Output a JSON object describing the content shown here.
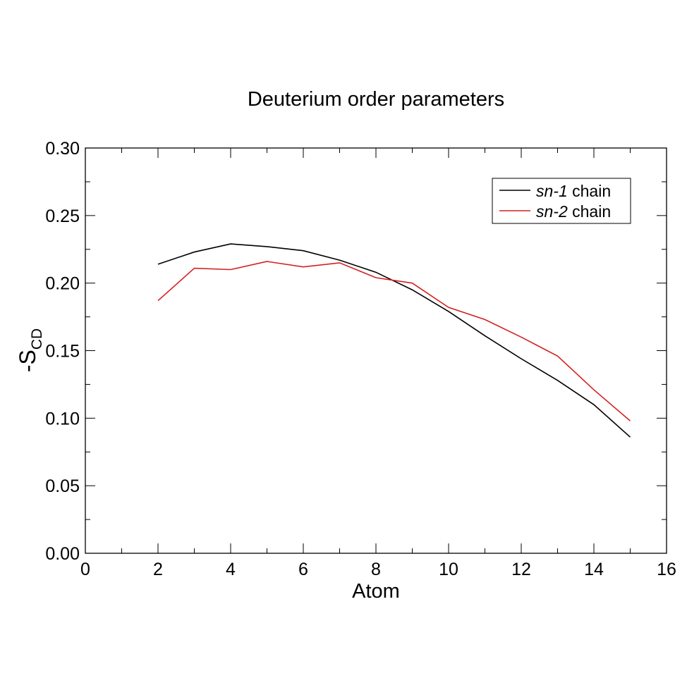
{
  "chart_data": {
    "type": "line",
    "title": "Deuterium order parameters",
    "xlabel": "Atom",
    "ylabel_main": "-S",
    "ylabel_sub": "CD",
    "xlim": [
      0,
      16
    ],
    "ylim": [
      0,
      0.3
    ],
    "xticks": [
      0,
      2,
      4,
      6,
      8,
      10,
      12,
      14,
      16
    ],
    "xtick_labels": [
      "0",
      "2",
      "4",
      "6",
      "8",
      "10",
      "12",
      "14",
      "16"
    ],
    "yticks": [
      0,
      0.05,
      0.1,
      0.15,
      0.2,
      0.25,
      0.3
    ],
    "ytick_labels": [
      "0.00",
      "0.05",
      "0.10",
      "0.15",
      "0.20",
      "0.25",
      "0.30"
    ],
    "grid": false,
    "legend_position": "top-right",
    "x": [
      2,
      3,
      4,
      5,
      6,
      7,
      8,
      9,
      10,
      11,
      12,
      13,
      14,
      15
    ],
    "series": [
      {
        "name": "sn-1 chain",
        "name_italic": "sn-1",
        "name_rest": " chain",
        "color": "#000000",
        "values": [
          0.214,
          0.223,
          0.229,
          0.227,
          0.224,
          0.217,
          0.208,
          0.195,
          0.179,
          0.161,
          0.144,
          0.128,
          0.11,
          0.086
        ]
      },
      {
        "name": "sn-2 chain",
        "name_italic": "sn-2",
        "name_rest": " chain",
        "color": "#d42020",
        "values": [
          0.187,
          0.211,
          0.21,
          0.216,
          0.212,
          0.215,
          0.204,
          0.2,
          0.182,
          0.173,
          0.16,
          0.146,
          0.121,
          0.098
        ]
      }
    ]
  }
}
